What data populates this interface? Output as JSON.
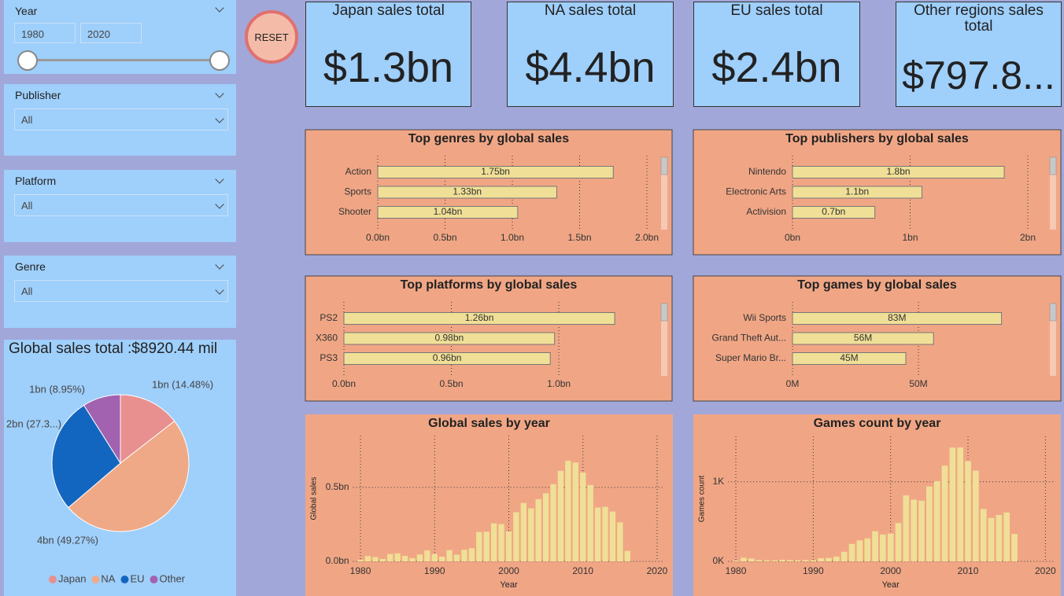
{
  "filters": {
    "year": {
      "label": "Year",
      "from": 1980,
      "to": 2020
    },
    "publisher": {
      "label": "Publisher",
      "value": "All"
    },
    "platform": {
      "label": "Platform",
      "value": "All"
    },
    "genre": {
      "label": "Genre",
      "value": "All"
    }
  },
  "reset": "RESET",
  "kpis": [
    {
      "title": "Japan sales total",
      "value": "$1.3bn"
    },
    {
      "title": "NA sales total",
      "value": "$4.4bn"
    },
    {
      "title": "EU sales total",
      "value": "$2.4bn"
    },
    {
      "title": "Other regions sales total",
      "value": "$797.8..."
    }
  ],
  "chart_data": [
    {
      "type": "bar",
      "orientation": "horizontal",
      "title": "Top genres by global sales",
      "categories": [
        "Action",
        "Sports",
        "Shooter"
      ],
      "values": [
        1.75,
        1.33,
        1.04
      ],
      "value_labels": [
        "1.75bn",
        "1.33bn",
        "1.04bn"
      ],
      "color": "#f0df96",
      "xlim": [
        0,
        2
      ],
      "xticks": [
        {
          "value": 0,
          "label": "0.0bn"
        },
        {
          "value": 0.5,
          "label": "0.5bn"
        },
        {
          "value": 1,
          "label": "1.0bn"
        },
        {
          "value": 1.5,
          "label": "1.5bn"
        },
        {
          "value": 2,
          "label": "2.0bn"
        }
      ],
      "grid": true
    },
    {
      "type": "bar",
      "orientation": "horizontal",
      "title": "Top publishers by global sales",
      "categories": [
        "Nintendo",
        "Electronic Arts",
        "Activision"
      ],
      "values": [
        1.8,
        1.1,
        0.7
      ],
      "value_labels": [
        "1.8bn",
        "1.1bn",
        "0.7bn"
      ],
      "color": "#f0df96",
      "xlim": [
        0,
        2
      ],
      "xticks": [
        {
          "value": 0,
          "label": "0bn"
        },
        {
          "value": 1,
          "label": "1bn"
        },
        {
          "value": 2,
          "label": "2bn"
        }
      ],
      "grid": true
    },
    {
      "type": "bar",
      "orientation": "horizontal",
      "title": "Top platforms by global sales",
      "categories": [
        "PS2",
        "X360",
        "PS3"
      ],
      "values": [
        1.26,
        0.98,
        0.96
      ],
      "value_labels": [
        "1.26bn",
        "0.98bn",
        "0.96bn"
      ],
      "color": "#f0df96",
      "xlim": [
        0,
        1.45
      ],
      "xticks": [
        {
          "value": 0,
          "label": "0.0bn"
        },
        {
          "value": 0.5,
          "label": "0.5bn"
        },
        {
          "value": 1,
          "label": "1.0bn"
        }
      ],
      "grid": true
    },
    {
      "type": "bar",
      "orientation": "horizontal",
      "title": "Top games by global sales",
      "categories": [
        "Wii Sports",
        "Grand Theft Aut...",
        "Super Mario Br..."
      ],
      "values": [
        83,
        56,
        45
      ],
      "value_labels": [
        "83M",
        "56M",
        "45M"
      ],
      "color": "#f0df96",
      "xlim": [
        0,
        100
      ],
      "xticks": [
        {
          "value": 0,
          "label": "0M"
        },
        {
          "value": 50,
          "label": "50M"
        }
      ],
      "grid": true
    },
    {
      "type": "bar",
      "orientation": "vertical",
      "title": "Global sales by year",
      "x_label": "Year",
      "y_label": "Global sales",
      "x": [
        1980,
        1981,
        1982,
        1983,
        1984,
        1985,
        1986,
        1987,
        1988,
        1989,
        1990,
        1991,
        1992,
        1993,
        1994,
        1995,
        1996,
        1997,
        1998,
        1999,
        2000,
        2001,
        2002,
        2003,
        2004,
        2005,
        2006,
        2007,
        2008,
        2009,
        2010,
        2011,
        2012,
        2013,
        2014,
        2015,
        2016
      ],
      "values": [
        0.011,
        0.036,
        0.029,
        0.017,
        0.05,
        0.054,
        0.037,
        0.022,
        0.047,
        0.074,
        0.05,
        0.032,
        0.076,
        0.046,
        0.079,
        0.089,
        0.199,
        0.201,
        0.257,
        0.252,
        0.202,
        0.332,
        0.395,
        0.358,
        0.42,
        0.46,
        0.522,
        0.612,
        0.68,
        0.668,
        0.6,
        0.516,
        0.364,
        0.369,
        0.337,
        0.264,
        0.071
      ],
      "color": "#f0df96",
      "xlim": [
        1979,
        2021
      ],
      "xticks": [
        1980,
        1990,
        2000,
        2010,
        2020
      ],
      "ylim": [
        0,
        0.85
      ],
      "yticks": [
        {
          "value": 0,
          "label": "0.0bn"
        },
        {
          "value": 0.5,
          "label": "0.5bn"
        }
      ],
      "grid": true
    },
    {
      "type": "bar",
      "orientation": "vertical",
      "title": "Games count by year",
      "x_label": "Year",
      "y_label": "Games count",
      "x": [
        1980,
        1981,
        1982,
        1983,
        1984,
        1985,
        1986,
        1987,
        1988,
        1989,
        1990,
        1991,
        1992,
        1993,
        1994,
        1995,
        1996,
        1997,
        1998,
        1999,
        2000,
        2001,
        2002,
        2003,
        2004,
        2005,
        2006,
        2007,
        2008,
        2009,
        2010,
        2011,
        2012,
        2013,
        2014,
        2015,
        2016
      ],
      "values": [
        9,
        46,
        36,
        17,
        14,
        14,
        21,
        16,
        15,
        17,
        16,
        41,
        43,
        60,
        121,
        219,
        263,
        289,
        379,
        338,
        349,
        482,
        829,
        775,
        763,
        941,
        1008,
        1202,
        1428,
        1431,
        1259,
        1139,
        657,
        546,
        582,
        614,
        344
      ],
      "color": "#f0df96",
      "xlim": [
        1979,
        2021
      ],
      "xticks": [
        1980,
        1990,
        2000,
        2010,
        2020
      ],
      "ylim": [
        0,
        1570
      ],
      "yticks": [
        {
          "value": 0,
          "label": "0K"
        },
        {
          "value": 1000,
          "label": "1K"
        }
      ],
      "grid": true
    },
    {
      "type": "pie",
      "title": "Global sales total :$8920.44 mil",
      "categories": [
        "Japan",
        "NA",
        "EU",
        "Other"
      ],
      "values": [
        14.48,
        49.27,
        27.3,
        8.95
      ],
      "value_labels": [
        "1bn (14.48%)",
        "4bn (49.27%)",
        "2bn (27.3...)",
        "1bn (8.95%)"
      ],
      "colors": [
        "#e8908f",
        "#f0a987",
        "#1366c0",
        "#a262b0"
      ],
      "legend": "bottom"
    }
  ]
}
